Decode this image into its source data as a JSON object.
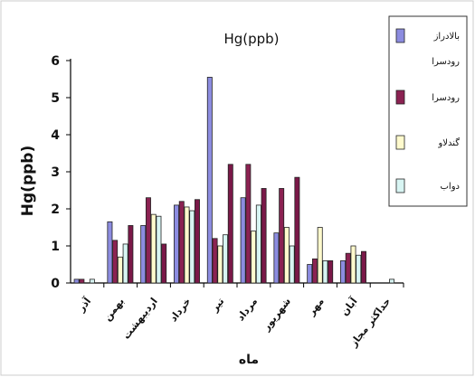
{
  "chart_data": {
    "type": "bar",
    "title": "Hg(ppb)",
    "ylabel": "Hg(ppb)",
    "xlabel": "ماه",
    "categories": [
      "آذر",
      "بهمن",
      "اردیبهشت",
      "خرداد",
      "تیر",
      "مرداد",
      "شهریور",
      "مهر",
      "آبان",
      "حداکثر مجاز"
    ],
    "ylim": [
      0,
      6
    ],
    "yticks": [
      "0",
      "1",
      "2",
      "3",
      "4",
      "5",
      "6"
    ],
    "series": [
      {
        "name": "بالادراز رودسرا",
        "color": "#8c8ce0",
        "values": [
          0.1,
          1.65,
          1.55,
          2.1,
          5.55,
          2.3,
          1.35,
          0.5,
          0.6,
          0
        ]
      },
      {
        "name": "رودسرا",
        "color": "#8b2252",
        "values": [
          0.1,
          1.15,
          2.3,
          2.2,
          1.2,
          3.2,
          2.55,
          0.65,
          0.8,
          0
        ]
      },
      {
        "name": "گندلاو",
        "color": "#fffacd",
        "values": [
          0,
          0.7,
          1.85,
          2.05,
          1.0,
          1.4,
          1.5,
          1.5,
          1.0,
          0
        ]
      },
      {
        "name": "دواب",
        "color": "#d8f5f3",
        "values": [
          0.1,
          1.05,
          1.8,
          1.95,
          1.3,
          2.1,
          1.0,
          0.6,
          0.75,
          0.1
        ]
      },
      {
        "name": "",
        "color": "#7a1848",
        "values": [
          0,
          1.55,
          1.05,
          2.25,
          3.2,
          2.55,
          2.85,
          0.6,
          0.85,
          0
        ]
      }
    ],
    "grid": false,
    "legend_position": "right"
  }
}
